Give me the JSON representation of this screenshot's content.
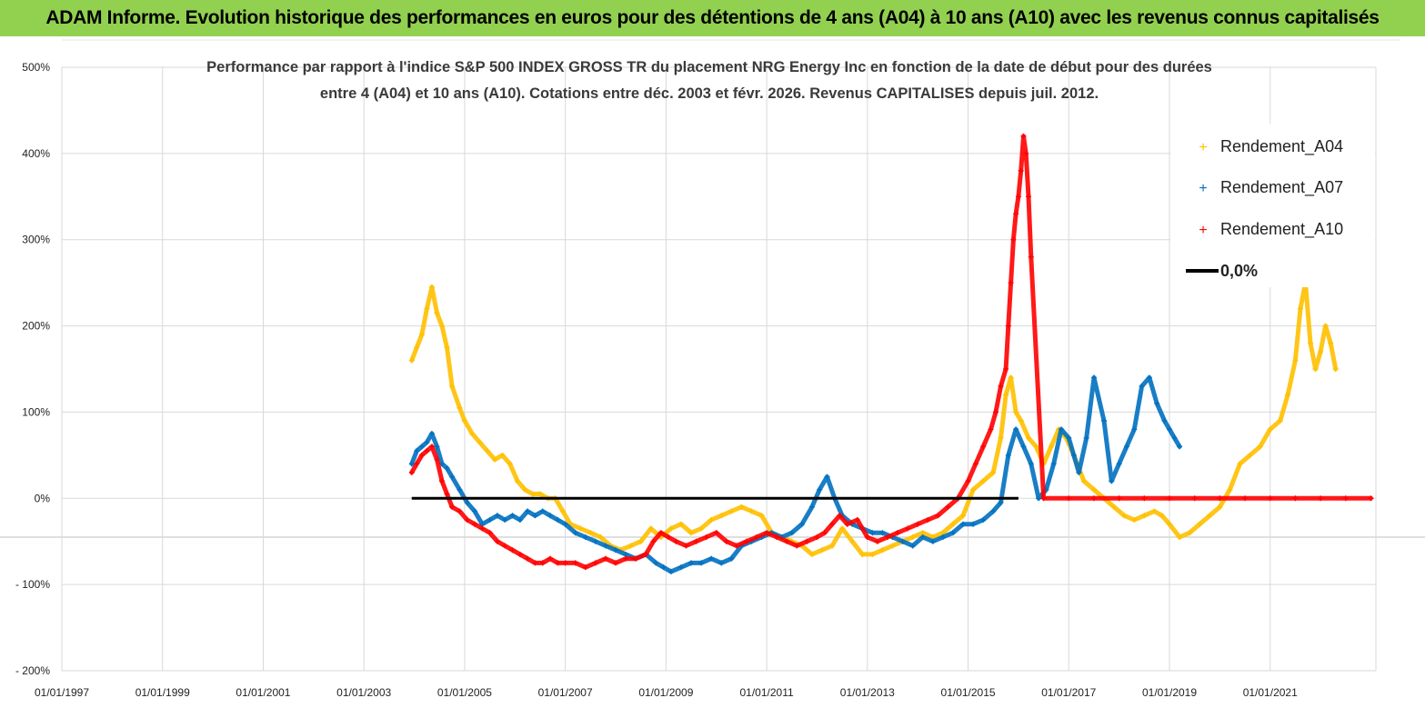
{
  "banner": {
    "title": "ADAM Informe. Evolution historique des performances en euros pour des détentions de 4 ans (A04) à 10 ans (A10) avec les revenus connus capitalisés"
  },
  "colors": {
    "banner": "#92d050",
    "a04": "#ffc000",
    "a07": "#0070c0",
    "a10": "#ff0000",
    "zero_line": "#000000",
    "grid": "#d9d9d9"
  },
  "chart_data": {
    "type": "scatter",
    "title_line1": "Performance par rapport à l'indice S&P 500 INDEX GROSS TR  du placement NRG Energy Inc en fonction de la date de début pour des durées",
    "title_line2": "entre 4 (A04) et 10 ans (A10). Cotations entre déc. 2003 et févr. 2026. Revenus CAPITALISES depuis juil. 2012.",
    "xlabel": "",
    "ylabel": "",
    "ylim": [
      -200,
      500
    ],
    "xlim": [
      1997.0,
      2023.1
    ],
    "grid": true,
    "legend_position": "top-right",
    "y_ticks": [
      {
        "value": 500,
        "label": "500%"
      },
      {
        "value": 400,
        "label": "400%"
      },
      {
        "value": 300,
        "label": "300%"
      },
      {
        "value": 200,
        "label": "200%"
      },
      {
        "value": 100,
        "label": "100%"
      },
      {
        "value": 0,
        "label": "0%"
      },
      {
        "value": -100,
        "label": "- 100%"
      },
      {
        "value": -200,
        "label": "- 200%"
      }
    ],
    "x_ticks": [
      {
        "value": 1997,
        "label": "01/01/1997"
      },
      {
        "value": 1999,
        "label": "01/01/1999"
      },
      {
        "value": 2001,
        "label": "01/01/2001"
      },
      {
        "value": 2003,
        "label": "01/01/2003"
      },
      {
        "value": 2005,
        "label": "01/01/2005"
      },
      {
        "value": 2007,
        "label": "01/01/2007"
      },
      {
        "value": 2009,
        "label": "01/01/2009"
      },
      {
        "value": 2011,
        "label": "01/01/2011"
      },
      {
        "value": 2013,
        "label": "01/01/2013"
      },
      {
        "value": 2015,
        "label": "01/01/2015"
      },
      {
        "value": 2017,
        "label": "01/01/2017"
      },
      {
        "value": 2019,
        "label": "01/01/2019"
      },
      {
        "value": 2021,
        "label": "01/01/2021"
      }
    ],
    "legend": [
      {
        "label": "Rendement_A04",
        "series": "a04"
      },
      {
        "label": "Rendement_A07",
        "series": "a07"
      },
      {
        "label": "Rendement_A10",
        "series": "a10"
      },
      {
        "label": "0,0%",
        "series": "zero"
      }
    ],
    "series": [
      {
        "name": "Rendement_A04",
        "key": "a04",
        "x": [
          2003.95,
          2004.05,
          2004.15,
          2004.25,
          2004.35,
          2004.45,
          2004.55,
          2004.65,
          2004.75,
          2004.9,
          2005.0,
          2005.15,
          2005.3,
          2005.45,
          2005.6,
          2005.75,
          2005.9,
          2006.05,
          2006.2,
          2006.35,
          2006.5,
          2006.65,
          2006.8,
          2006.95,
          2007.1,
          2007.3,
          2007.5,
          2007.7,
          2007.9,
          2008.1,
          2008.3,
          2008.5,
          2008.7,
          2008.9,
          2009.1,
          2009.3,
          2009.5,
          2009.7,
          2009.9,
          2010.1,
          2010.3,
          2010.5,
          2010.7,
          2010.9,
          2011.1,
          2011.3,
          2011.5,
          2011.7,
          2011.9,
          2012.1,
          2012.3,
          2012.5,
          2012.7,
          2012.9,
          2013.1,
          2013.3,
          2013.5,
          2013.7,
          2013.9,
          2014.1,
          2014.3,
          2014.5,
          2014.7,
          2014.9,
          2015.1,
          2015.3,
          2015.5,
          2015.65,
          2015.75,
          2015.85,
          2015.95,
          2016.05,
          2016.2,
          2016.35,
          2016.5,
          2016.65,
          2016.8,
          2016.95,
          2017.1,
          2017.3,
          2017.5,
          2017.7,
          2017.9,
          2018.1,
          2018.3,
          2018.5,
          2018.7,
          2018.85,
          2019.0,
          2019.2,
          2019.4,
          2019.6,
          2019.8,
          2020.0,
          2020.2,
          2020.4,
          2020.6,
          2020.8,
          2021.0,
          2021.2,
          2021.35,
          2021.5,
          2021.6,
          2021.7,
          2021.8,
          2021.9,
          2022.0,
          2022.1,
          2022.2,
          2022.3
        ],
        "values": [
          160,
          175,
          190,
          220,
          245,
          215,
          200,
          175,
          130,
          105,
          90,
          75,
          65,
          55,
          45,
          50,
          40,
          20,
          10,
          5,
          5,
          0,
          0,
          -15,
          -30,
          -35,
          -40,
          -45,
          -55,
          -60,
          -55,
          -50,
          -35,
          -45,
          -35,
          -30,
          -40,
          -35,
          -25,
          -20,
          -15,
          -10,
          -15,
          -20,
          -40,
          -45,
          -50,
          -55,
          -65,
          -60,
          -55,
          -35,
          -50,
          -65,
          -65,
          -60,
          -55,
          -50,
          -45,
          -40,
          -45,
          -40,
          -30,
          -20,
          10,
          20,
          30,
          70,
          120,
          140,
          100,
          90,
          70,
          60,
          40,
          60,
          80,
          70,
          50,
          20,
          10,
          0,
          -10,
          -20,
          -25,
          -20,
          -15,
          -20,
          -30,
          -45,
          -40,
          -30,
          -20,
          -10,
          10,
          40,
          50,
          60,
          80,
          90,
          120,
          160,
          220,
          250,
          180,
          150,
          170,
          200,
          180,
          150
        ]
      },
      {
        "name": "Rendement_A07",
        "key": "a07",
        "x": [
          2003.95,
          2004.05,
          2004.15,
          2004.25,
          2004.35,
          2004.45,
          2004.55,
          2004.65,
          2004.75,
          2004.9,
          2005.05,
          2005.2,
          2005.35,
          2005.5,
          2005.65,
          2005.8,
          2005.95,
          2006.1,
          2006.25,
          2006.4,
          2006.55,
          2006.7,
          2006.85,
          2007.0,
          2007.2,
          2007.4,
          2007.6,
          2007.8,
          2008.0,
          2008.2,
          2008.4,
          2008.6,
          2008.8,
          2008.95,
          2009.1,
          2009.3,
          2009.5,
          2009.7,
          2009.9,
          2010.1,
          2010.3,
          2010.5,
          2010.7,
          2010.9,
          2011.1,
          2011.3,
          2011.5,
          2011.7,
          2011.9,
          2012.05,
          2012.2,
          2012.35,
          2012.5,
          2012.7,
          2012.9,
          2013.1,
          2013.3,
          2013.5,
          2013.7,
          2013.9,
          2014.1,
          2014.3,
          2014.5,
          2014.7,
          2014.9,
          2015.1,
          2015.3,
          2015.5,
          2015.65,
          2015.8,
          2015.95,
          2016.1,
          2016.25,
          2016.4,
          2016.55,
          2016.7,
          2016.85,
          2017.0,
          2017.1,
          2017.2,
          2017.35,
          2017.5,
          2017.7,
          2017.85,
          2018.0,
          2018.15,
          2018.3,
          2018.45,
          2018.6,
          2018.75,
          2018.9,
          2019.0,
          2019.1,
          2019.2
        ],
        "values": [
          40,
          55,
          60,
          65,
          75,
          60,
          40,
          35,
          25,
          10,
          -5,
          -15,
          -30,
          -25,
          -20,
          -25,
          -20,
          -25,
          -15,
          -20,
          -15,
          -20,
          -25,
          -30,
          -40,
          -45,
          -50,
          -55,
          -60,
          -65,
          -70,
          -65,
          -75,
          -80,
          -85,
          -80,
          -75,
          -75,
          -70,
          -75,
          -70,
          -55,
          -50,
          -45,
          -40,
          -45,
          -40,
          -30,
          -10,
          10,
          25,
          0,
          -20,
          -30,
          -35,
          -40,
          -40,
          -45,
          -50,
          -55,
          -45,
          -50,
          -45,
          -40,
          -30,
          -30,
          -25,
          -15,
          -5,
          50,
          80,
          60,
          40,
          0,
          10,
          40,
          80,
          70,
          50,
          30,
          70,
          140,
          90,
          20,
          40,
          60,
          80,
          130,
          140,
          110,
          90,
          80,
          70,
          60
        ]
      },
      {
        "name": "Rendement_A10",
        "key": "a10",
        "x": [
          2003.95,
          2004.05,
          2004.15,
          2004.25,
          2004.35,
          2004.45,
          2004.55,
          2004.65,
          2004.75,
          2004.9,
          2005.05,
          2005.2,
          2005.35,
          2005.5,
          2005.65,
          2005.8,
          2005.95,
          2006.1,
          2006.25,
          2006.4,
          2006.55,
          2006.7,
          2006.85,
          2007.0,
          2007.2,
          2007.4,
          2007.6,
          2007.8,
          2008.0,
          2008.2,
          2008.4,
          2008.6,
          2008.75,
          2008.9,
          2009.05,
          2009.2,
          2009.4,
          2009.6,
          2009.8,
          2010.0,
          2010.2,
          2010.4,
          2010.6,
          2010.8,
          2011.0,
          2011.2,
          2011.4,
          2011.6,
          2011.8,
          2012.0,
          2012.15,
          2012.3,
          2012.45,
          2012.6,
          2012.8,
          2013.0,
          2013.2,
          2013.4,
          2013.6,
          2013.8,
          2014.0,
          2014.2,
          2014.4,
          2014.6,
          2014.8,
          2015.0,
          2015.15,
          2015.3,
          2015.45,
          2015.55,
          2015.65,
          2015.75,
          2015.8,
          2015.85,
          2015.9,
          2015.95,
          2016.0,
          2016.05,
          2016.1,
          2016.15,
          2016.2,
          2016.25,
          2016.5,
          2017.0,
          2017.5,
          2018.0,
          2018.5,
          2019.0,
          2019.5,
          2020.0,
          2020.5,
          2021.0,
          2021.5,
          2022.0,
          2022.5,
          2023.0
        ],
        "values": [
          30,
          40,
          50,
          55,
          60,
          45,
          20,
          5,
          -10,
          -15,
          -25,
          -30,
          -35,
          -40,
          -50,
          -55,
          -60,
          -65,
          -70,
          -75,
          -75,
          -70,
          -75,
          -75,
          -75,
          -80,
          -75,
          -70,
          -75,
          -70,
          -70,
          -65,
          -50,
          -40,
          -45,
          -50,
          -55,
          -50,
          -45,
          -40,
          -50,
          -55,
          -50,
          -45,
          -40,
          -45,
          -50,
          -55,
          -50,
          -45,
          -40,
          -30,
          -20,
          -30,
          -25,
          -45,
          -50,
          -45,
          -40,
          -35,
          -30,
          -25,
          -20,
          -10,
          0,
          20,
          40,
          60,
          80,
          100,
          130,
          150,
          200,
          250,
          300,
          330,
          350,
          380,
          420,
          400,
          350,
          280,
          0,
          0,
          0,
          0,
          0,
          0,
          0,
          0,
          0,
          0,
          0,
          0,
          0,
          0
        ]
      },
      {
        "name": "0,0%",
        "key": "zero",
        "x": [
          2003.95,
          2016.0
        ],
        "values": [
          0,
          0
        ]
      }
    ]
  }
}
